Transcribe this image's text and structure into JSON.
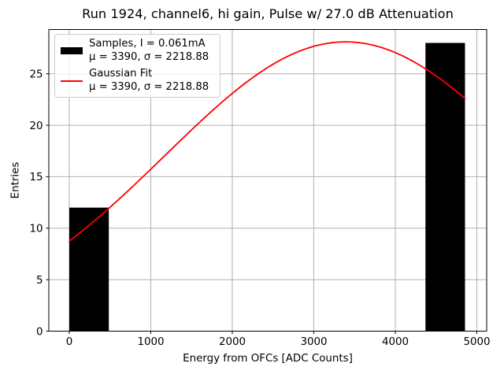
{
  "figure": {
    "title": "Run 1924, channel6, hi gain, Pulse w/ 27.0 dB Attenuation"
  },
  "chart_data": {
    "type": "bar",
    "subtype": "histogram-with-gaussian-fit",
    "title": "Run 1924, channel6, hi gain, Pulse w/ 27.0 dB Attenuation",
    "xlabel": "Energy from OFCs [ADC Counts]",
    "ylabel": "Entries",
    "xlim": [
      -251,
      5121
    ],
    "ylim": [
      0,
      29.3
    ],
    "xticks": [
      0,
      1000,
      2000,
      3000,
      4000,
      5000
    ],
    "yticks": [
      0,
      5,
      10,
      15,
      20,
      25
    ],
    "grid": true,
    "bars": [
      {
        "x0": 0,
        "x1": 485,
        "count": 12
      },
      {
        "x0": 4370,
        "x1": 4855,
        "count": 28
      }
    ],
    "gaussian_fit": {
      "mu": 3390,
      "sigma": 2218.88,
      "amplitude": 28.1,
      "x_start": 0,
      "x_end": 4855
    },
    "legend": {
      "position": "upper-left",
      "entries": [
        {
          "swatch": "black-bar",
          "lines": [
            "Samples, I = 0.061mA",
            "μ = 3390, σ = 2218.88"
          ]
        },
        {
          "swatch": "red-line",
          "lines": [
            "Gaussian Fit",
            "μ = 3390, σ = 2218.88"
          ]
        }
      ]
    },
    "colors": {
      "bar": "#000000",
      "fit_line": "#ff0000",
      "grid": "#b0b0b0",
      "axes": "#000000",
      "text": "#000000",
      "legend_border": "#cccccc",
      "background": "#ffffff"
    }
  }
}
